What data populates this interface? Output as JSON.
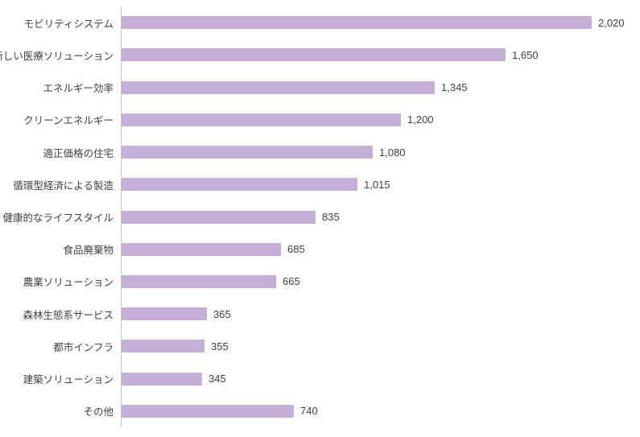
{
  "chart_data": {
    "type": "bar",
    "orientation": "horizontal",
    "title": "",
    "xlabel": "",
    "ylabel": "",
    "grid": false,
    "legend": false,
    "xlim": [
      0,
      2100
    ],
    "bar_color": "#c5afd6",
    "text_color": "#404040",
    "axis_color": "#c6c6c6",
    "categories": [
      "モビリティシステム",
      "新しい医療ソリューション",
      "エネルギー効率",
      "クリーンエネルギー",
      "適正価格の住宅",
      "循環型経済による製造",
      "健康的なライフスタイル",
      "食品廃棄物",
      "農業ソリューション",
      "森林生態系サービス",
      "都市インフラ",
      "建築ソリューション",
      "その他"
    ],
    "values": [
      2020,
      1650,
      1345,
      1200,
      1080,
      1015,
      835,
      685,
      665,
      365,
      355,
      345,
      740
    ],
    "value_labels": [
      "2,020",
      "1,650",
      "1,345",
      "1,200",
      "1,080",
      "1,015",
      "835",
      "685",
      "665",
      "365",
      "355",
      "345",
      "740"
    ]
  }
}
